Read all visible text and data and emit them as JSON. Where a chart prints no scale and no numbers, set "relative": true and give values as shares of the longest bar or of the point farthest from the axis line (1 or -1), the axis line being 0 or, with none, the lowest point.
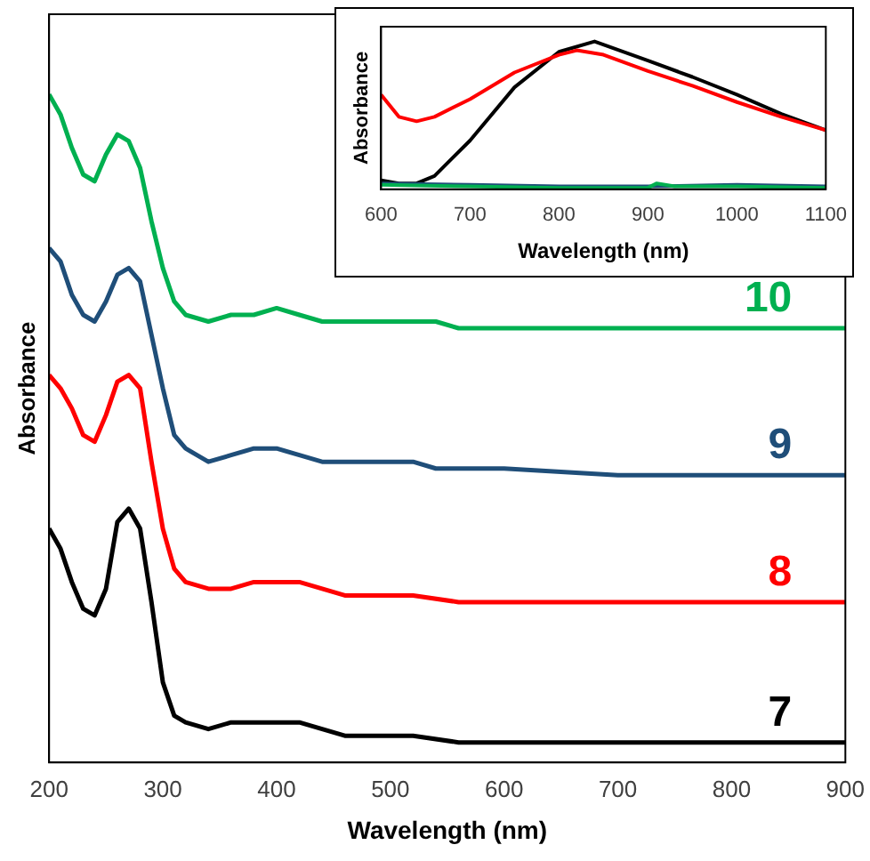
{
  "chart_data": [
    {
      "type": "line",
      "xlabel": "Wavelength (nm)",
      "ylabel": "Absorbance",
      "relative": true,
      "xlim": [
        200,
        900
      ],
      "xticks": [
        200,
        300,
        400,
        500,
        600,
        700,
        800,
        900
      ],
      "grid": false,
      "legend": false,
      "marker": "none",
      "line_style": "solid",
      "tick_labels": "x",
      "series": [
        {
          "name": "10",
          "color": "#00b050",
          "x": [
            200,
            210,
            220,
            230,
            240,
            250,
            260,
            270,
            280,
            290,
            300,
            310,
            320,
            340,
            360,
            380,
            400,
            420,
            440,
            460,
            480,
            500,
            520,
            540,
            560,
            600,
            700,
            800,
            900
          ],
          "values": [
            1.0,
            0.97,
            0.92,
            0.88,
            0.87,
            0.91,
            0.94,
            0.93,
            0.89,
            0.81,
            0.74,
            0.69,
            0.67,
            0.66,
            0.67,
            0.67,
            0.68,
            0.67,
            0.66,
            0.66,
            0.66,
            0.66,
            0.66,
            0.66,
            0.65,
            0.65,
            0.65,
            0.65,
            0.65
          ]
        },
        {
          "name": "9",
          "color": "#1f4e79",
          "x": [
            200,
            210,
            220,
            230,
            240,
            250,
            260,
            270,
            280,
            290,
            300,
            310,
            320,
            340,
            360,
            380,
            400,
            420,
            440,
            460,
            480,
            500,
            520,
            540,
            560,
            600,
            700,
            800,
            900
          ],
          "values": [
            0.77,
            0.75,
            0.7,
            0.67,
            0.66,
            0.69,
            0.73,
            0.74,
            0.72,
            0.64,
            0.56,
            0.49,
            0.47,
            0.45,
            0.46,
            0.47,
            0.47,
            0.46,
            0.45,
            0.45,
            0.45,
            0.45,
            0.45,
            0.44,
            0.44,
            0.44,
            0.43,
            0.43,
            0.43
          ]
        },
        {
          "name": "8",
          "color": "#ff0000",
          "x": [
            200,
            210,
            220,
            230,
            240,
            250,
            260,
            270,
            280,
            290,
            300,
            310,
            320,
            340,
            360,
            380,
            400,
            420,
            440,
            460,
            480,
            500,
            520,
            560,
            600,
            700,
            800,
            900
          ],
          "values": [
            0.58,
            0.56,
            0.53,
            0.49,
            0.48,
            0.52,
            0.57,
            0.58,
            0.56,
            0.45,
            0.35,
            0.29,
            0.27,
            0.26,
            0.26,
            0.27,
            0.27,
            0.27,
            0.26,
            0.25,
            0.25,
            0.25,
            0.25,
            0.24,
            0.24,
            0.24,
            0.24,
            0.24
          ]
        },
        {
          "name": "7",
          "color": "#000000",
          "x": [
            200,
            210,
            220,
            230,
            240,
            250,
            260,
            270,
            280,
            290,
            300,
            310,
            320,
            340,
            360,
            380,
            400,
            420,
            440,
            460,
            480,
            520,
            560,
            600,
            700,
            800,
            900
          ],
          "values": [
            0.35,
            0.32,
            0.27,
            0.23,
            0.22,
            0.26,
            0.36,
            0.38,
            0.35,
            0.24,
            0.12,
            0.07,
            0.06,
            0.05,
            0.06,
            0.06,
            0.06,
            0.06,
            0.05,
            0.04,
            0.04,
            0.04,
            0.03,
            0.03,
            0.03,
            0.03,
            0.03
          ]
        }
      ]
    },
    {
      "type": "line",
      "xlabel": "Wavelength (nm)",
      "ylabel": "Absorbance",
      "relative": true,
      "xlim": [
        600,
        1100
      ],
      "xticks": [
        600,
        700,
        800,
        900,
        1000,
        1100
      ],
      "grid": false,
      "legend": false,
      "marker": "none",
      "line_style": "solid",
      "tick_labels": "x",
      "series": [
        {
          "color": "#00b050",
          "x": [
            600,
            700,
            800,
            900,
            910,
            930,
            1000,
            1100
          ],
          "values": [
            0.03,
            0.02,
            0.01,
            0.01,
            0.04,
            0.02,
            0.02,
            0.01
          ]
        },
        {
          "color": "#1f4e79",
          "x": [
            600,
            700,
            800,
            900,
            1000,
            1100
          ],
          "values": [
            0.04,
            0.03,
            0.02,
            0.02,
            0.03,
            0.02
          ]
        },
        {
          "color": "#ff0000",
          "x": [
            600,
            620,
            640,
            660,
            700,
            750,
            800,
            820,
            850,
            900,
            950,
            1000,
            1050,
            1100
          ],
          "values": [
            0.64,
            0.49,
            0.46,
            0.49,
            0.61,
            0.79,
            0.91,
            0.94,
            0.91,
            0.8,
            0.7,
            0.59,
            0.49,
            0.4
          ]
        },
        {
          "color": "#000000",
          "x": [
            600,
            620,
            640,
            660,
            700,
            750,
            800,
            840,
            900,
            950,
            1000,
            1050,
            1100
          ],
          "values": [
            0.06,
            0.04,
            0.04,
            0.09,
            0.33,
            0.69,
            0.93,
            1.0,
            0.87,
            0.76,
            0.64,
            0.51,
            0.4
          ]
        }
      ]
    }
  ]
}
